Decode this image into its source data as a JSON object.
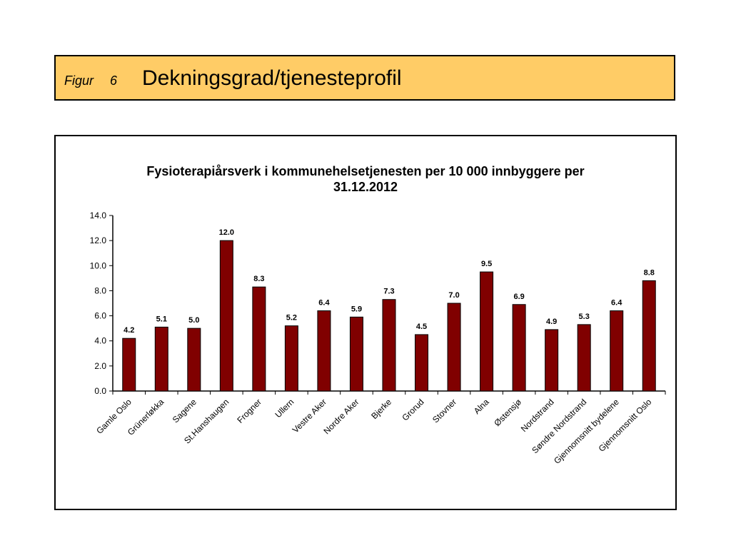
{
  "header": {
    "figur_label": "Figur",
    "figur_number": "6",
    "title": "Dekningsgrad/tjenesteprofil",
    "background_color": "#ffcc66"
  },
  "chart_data": {
    "type": "bar",
    "title_line1": "Fysioterapiårsverk i kommunehelsetjenesten per 10 000 innbyggere per",
    "title_line2": "31.12.2012",
    "categories": [
      "Gamle Oslo",
      "Grünerløkka",
      "Sagene",
      "St.Hanshaugen",
      "Frogner",
      "Ullern",
      "Vestre Aker",
      "Nordre Aker",
      "Bjerke",
      "Grorud",
      "Stovner",
      "Alna",
      "Østensjø",
      "Nordstrand",
      "Søndre Nordstrand",
      "Gjennomsnitt bydelene",
      "Gjennomsnitt Oslo"
    ],
    "values": [
      4.2,
      5.1,
      5.0,
      12.0,
      8.3,
      5.2,
      6.4,
      5.9,
      7.3,
      4.5,
      7.0,
      9.5,
      6.9,
      4.9,
      5.3,
      6.4,
      8.8
    ],
    "value_labels": [
      "4.2",
      "5.1",
      "5.0",
      "12.0",
      "8.3",
      "5.2",
      "6.4",
      "5.9",
      "7.3",
      "4.5",
      "7.0",
      "9.5",
      "6.9",
      "4.9",
      "5.3",
      "6.4",
      "8.8"
    ],
    "ylim": [
      0,
      14
    ],
    "yticks": [
      "0.0",
      "2.0",
      "4.0",
      "6.0",
      "8.0",
      "10.0",
      "12.0",
      "14.0"
    ],
    "bar_color": "#800000",
    "grid": false,
    "legend": "none"
  }
}
